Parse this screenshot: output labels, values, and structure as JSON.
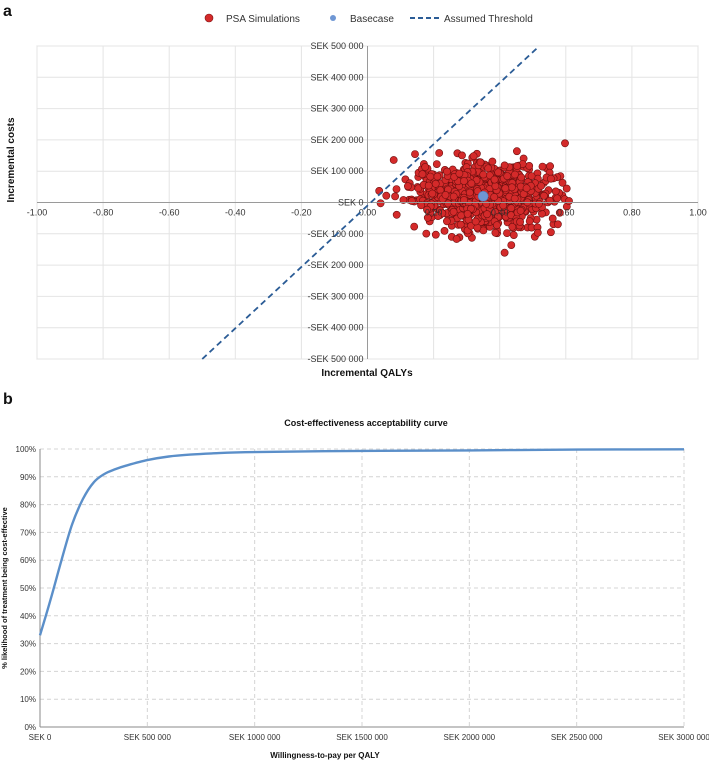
{
  "panel_a_letter": "a",
  "panel_b_letter": "b",
  "chart_data": [
    {
      "type": "scatter",
      "legend": {
        "placement": "top",
        "entries": [
          "PSA Simulations",
          "Basecase",
          "Assumed Threshold"
        ]
      },
      "xlabel": "Incremental QALYs",
      "ylabel": "Incremental costs",
      "xlim": [
        -1.0,
        1.0
      ],
      "ylim": [
        -500000,
        500000
      ],
      "x_ticks": [
        -1.0,
        -0.8,
        -0.6,
        -0.4,
        -0.2,
        0.0,
        0.2,
        0.4,
        0.6,
        0.8,
        1.0
      ],
      "x_tick_labels": [
        "-1.00",
        "-0.80",
        "-0.60",
        "-0.40",
        "-0.20",
        "0.00",
        "0.20",
        "0.40",
        "0.60",
        "0.80",
        "1.00"
      ],
      "y_ticks": [
        500000,
        400000,
        300000,
        200000,
        100000,
        0,
        -100000,
        -200000,
        -300000,
        -400000,
        -500000
      ],
      "y_tick_labels": [
        "SEK 500 000",
        "SEK 400 000",
        "SEK 300 000",
        "SEK 200 000",
        "SEK 100 000",
        "SEK  0",
        "-SEK 100 000",
        "-SEK 200 000",
        "-SEK 300 000",
        "-SEK 400 000",
        "-SEK 500 000"
      ],
      "grid": true,
      "series": [
        {
          "name": "PSA Simulations",
          "color": "#d42a2a",
          "center": [
            0.35,
            20000
          ],
          "x_range": [
            0.0,
            0.64
          ],
          "y_range": [
            -165000,
            230000
          ],
          "n_points": 1000
        },
        {
          "name": "Basecase",
          "color": "#6f97d4",
          "x": [
            0.35
          ],
          "y": [
            20000
          ]
        },
        {
          "name": "Assumed Threshold",
          "color": "#2b5c96",
          "style": "dashed",
          "x": [
            -0.5,
            0.52
          ],
          "y": [
            -500000,
            500000
          ]
        }
      ]
    },
    {
      "type": "line",
      "title": "Cost-effectiveness acceptability curve",
      "xlabel": "Willingness-to-pay per QALY",
      "ylabel": "% likelihood of treatment being cost-effective",
      "xlim": [
        0,
        3000000
      ],
      "ylim": [
        0,
        100
      ],
      "x_tick_labels": [
        "SEK  0",
        "SEK 500 000",
        "SEK 1000 000",
        "SEK 1500 000",
        "SEK 2000 000",
        "SEK 2500 000",
        "SEK 3000 000"
      ],
      "y_tick_labels": [
        "0%",
        "10%",
        "20%",
        "30%",
        "40%",
        "50%",
        "60%",
        "70%",
        "80%",
        "90%",
        "100%"
      ],
      "grid": true,
      "series": [
        {
          "color": "#5b8fc9",
          "x": [
            0,
            50000,
            100000,
            150000,
            200000,
            250000,
            300000,
            350000,
            400000,
            500000,
            600000,
            700000,
            800000,
            1000000,
            1500000,
            2000000,
            2500000,
            3000000
          ],
          "y": [
            33,
            46,
            60,
            73,
            82,
            88,
            91,
            92.7,
            94,
            96,
            97.3,
            98,
            98.4,
            98.9,
            99.3,
            99.5,
            99.8,
            99.9
          ]
        }
      ]
    }
  ]
}
